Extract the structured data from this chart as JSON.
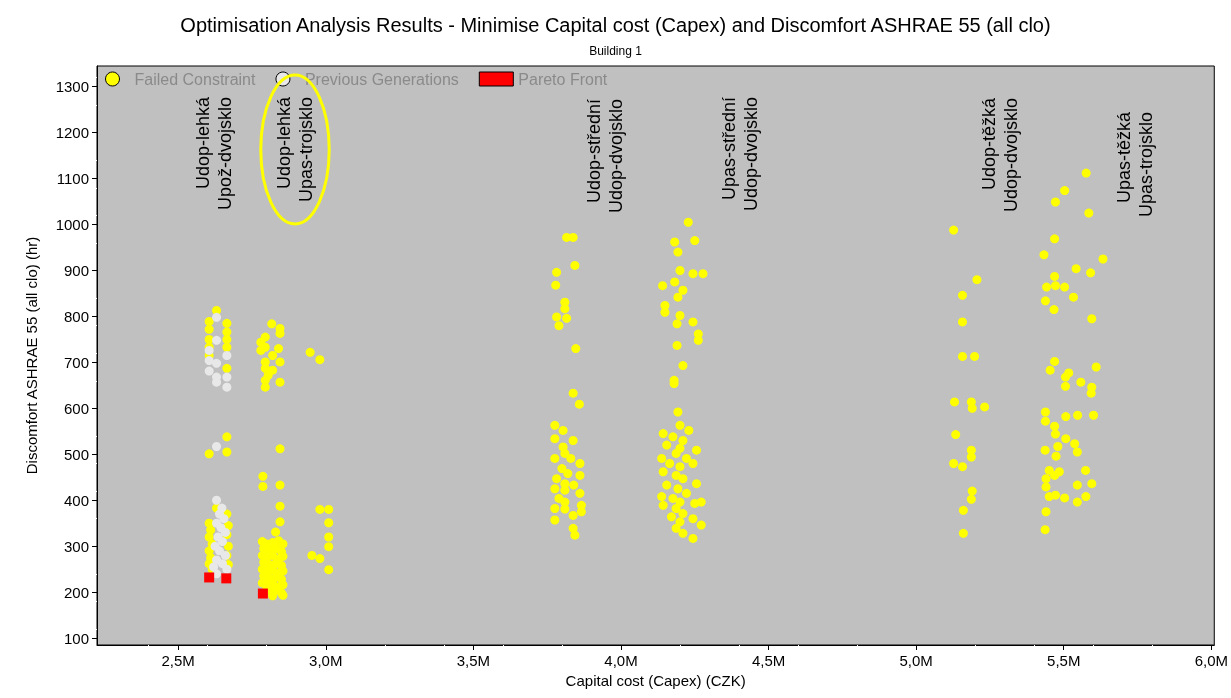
{
  "chart_data": {
    "type": "scatter",
    "title": "Optimisation Analysis Results - Minimise Capital cost (Capex) and Discomfort ASHRAE 55 (all clo)",
    "subtitle": "Building 1",
    "xlabel": "Capital cost (Capex) (CZK)",
    "ylabel": "Discomfort ASHRAE 55 (all clo) (hr)",
    "xlim": [
      2.225,
      6.01
    ],
    "xticks": [
      {
        "value": 2.5,
        "label": "2,5M"
      },
      {
        "value": 3.0,
        "label": "3,0M"
      },
      {
        "value": 3.5,
        "label": "3,5M"
      },
      {
        "value": 4.0,
        "label": "4,0M"
      },
      {
        "value": 4.5,
        "label": "4,5M"
      },
      {
        "value": 5.0,
        "label": "5,0M"
      },
      {
        "value": 5.5,
        "label": "5,5M"
      },
      {
        "value": 6.0,
        "label": "6,0M"
      }
    ],
    "ylim": [
      85,
      1345
    ],
    "yticks": [
      100,
      200,
      300,
      400,
      500,
      600,
      700,
      800,
      900,
      1000,
      1100,
      1200,
      1300
    ],
    "grid": false,
    "legend": "top left",
    "series": [
      {
        "name": "Failed Constraint",
        "color": "#ffff00",
        "marker": "circle",
        "x": [
          2.63,
          2.605,
          2.665,
          2.605,
          2.665,
          2.605,
          2.665,
          2.665,
          2.605,
          2.665,
          2.605,
          2.665,
          2.605,
          2.665,
          2.605,
          2.61,
          2.605,
          2.615,
          2.605,
          2.61,
          2.605,
          2.615,
          2.665,
          2.67,
          2.665,
          2.67,
          2.665,
          2.67,
          2.66,
          2.63,
          2.817,
          2.845,
          2.845,
          2.795,
          2.78,
          2.795,
          2.78,
          2.84,
          2.82,
          2.795,
          2.845,
          2.795,
          2.82,
          2.805,
          2.795,
          2.845,
          2.795,
          2.947,
          2.98,
          2.845,
          2.787,
          2.787,
          2.845,
          2.845,
          2.845,
          2.83,
          2.785,
          2.8,
          2.82,
          2.84,
          2.855,
          2.79,
          2.81,
          2.83,
          2.85,
          2.785,
          2.8,
          2.82,
          2.84,
          2.855,
          2.79,
          2.81,
          2.83,
          2.85,
          2.785,
          2.8,
          2.82,
          2.84,
          2.855,
          2.79,
          2.81,
          2.83,
          2.85,
          2.785,
          2.8,
          2.82,
          2.84,
          2.855,
          2.8,
          2.82,
          2.835,
          2.85,
          2.82,
          2.855,
          2.98,
          3.01,
          3.01,
          3.01,
          3.01,
          2.953,
          2.98,
          3.01,
          3.816,
          3.838,
          3.844,
          3.782,
          3.779,
          3.81,
          3.81,
          3.782,
          3.816,
          3.79,
          3.847,
          3.838,
          3.859,
          3.776,
          3.804,
          3.776,
          3.838,
          3.804,
          3.81,
          3.776,
          3.83,
          3.861,
          3.8,
          3.82,
          3.861,
          3.782,
          3.81,
          3.84,
          3.776,
          3.81,
          3.861,
          3.79,
          3.81,
          3.866,
          3.776,
          3.81,
          3.838,
          3.776,
          3.866,
          3.838,
          3.844,
          4.228,
          4.182,
          4.25,
          4.193,
          4.2,
          4.244,
          4.278,
          4.141,
          4.182,
          4.21,
          4.193,
          4.149,
          4.149,
          4.2,
          4.19,
          4.244,
          4.262,
          4.262,
          4.19,
          4.21,
          4.18,
          4.18,
          4.193,
          4.2,
          4.23,
          4.143,
          4.176,
          4.21,
          4.155,
          4.2,
          4.256,
          4.187,
          4.138,
          4.222,
          4.165,
          4.2,
          4.244,
          4.143,
          4.187,
          4.21,
          4.256,
          4.155,
          4.193,
          4.222,
          4.138,
          4.176,
          4.2,
          4.25,
          4.143,
          4.272,
          4.187,
          4.21,
          4.171,
          4.244,
          4.2,
          4.272,
          4.187,
          4.21,
          4.244,
          5.127,
          5.206,
          5.157,
          5.157,
          5.157,
          5.198,
          5.13,
          5.187,
          5.19,
          5.232,
          5.134,
          5.187,
          5.187,
          5.127,
          5.157,
          5.19,
          5.187,
          5.16,
          5.16,
          5.576,
          5.503,
          5.472,
          5.585,
          5.469,
          5.433,
          5.633,
          5.542,
          5.591,
          5.469,
          5.442,
          5.472,
          5.503,
          5.533,
          5.438,
          5.467,
          5.595,
          5.469,
          5.454,
          5.61,
          5.517,
          5.506,
          5.558,
          5.506,
          5.595,
          5.593,
          5.438,
          5.438,
          5.507,
          5.547,
          5.601,
          5.469,
          5.472,
          5.507,
          5.537,
          5.48,
          5.546,
          5.437,
          5.474,
          5.451,
          5.485,
          5.574,
          5.44,
          5.469,
          5.546,
          5.595,
          5.44,
          5.451,
          5.472,
          5.503,
          5.575,
          5.546,
          5.44,
          5.437
        ],
        "values": [
          813,
          789,
          785,
          772,
          766,
          750,
          750,
          733,
          733,
          687,
          715,
          538,
          501,
          505,
          350,
          335,
          320,
          305,
          290,
          275,
          262,
          250,
          370,
          345,
          325,
          300,
          280,
          260,
          null,
          383,
          784,
          774,
          763,
          755,
          744,
          733,
          726,
          730,
          715,
          701,
          701,
          687,
          683,
          672,
          661,
          657,
          646,
          722,
          706,
          512,
          452,
          430,
          433,
          387,
          353,
          331,
          310,
          305,
          308,
          312,
          305,
          295,
          290,
          295,
          288,
          280,
          275,
          280,
          272,
          278,
          265,
          260,
          262,
          258,
          250,
          245,
          248,
          242,
          246,
          235,
          230,
          232,
          228,
          220,
          215,
          218,
          212,
          216,
          205,
          200,
          205,
          198,
          192,
          193,
          380,
          380,
          351,
          320,
          299,
          280,
          273,
          249,
          972,
          972,
          911,
          896,
          868,
          831,
          817,
          799,
          796,
          780,
          730,
          633,
          609,
          563,
          552,
          534,
          530,
          516,
          502,
          491,
          491,
          480,
          469,
          458,
          454,
          447,
          436,
          433,
          425,
          422,
          415,
          404,
          396,
          389,
          382,
          381,
          367,
          357,
          375,
          339,
          324,
          1005,
          962,
          965,
          940,
          900,
          893,
          893,
          867,
          875,
          857,
          842,
          824,
          809,
          802,
          784,
          788,
          762,
          748,
          737,
          693,
          661,
          654,
          592,
          563,
          552,
          545,
          538,
          530,
          520,
          513,
          509,
          502,
          491,
          491,
          480,
          473,
          480,
          462,
          454,
          447,
          436,
          433,
          425,
          415,
          408,
          404,
          396,
          393,
          389,
          396,
          382,
          371,
          364,
          360,
          353,
          346,
          339,
          328,
          317,
          988,
          880,
          846,
          788,
          713,
          713,
          614,
          614,
          600,
          603,
          543,
          509,
          494,
          480,
          473,
          420,
          402,
          378,
          328,
          1112,
          1074,
          1049,
          1025,
          969,
          934,
          925,
          904,
          895,
          887,
          864,
          867,
          864,
          842,
          834,
          815,
          795,
          702,
          683,
          690,
          677,
          668,
          657,
          648,
          646,
          633,
          592,
          572,
          582,
          585,
          585,
          561,
          544,
          534,
          523,
          517,
          505,
          509,
          496,
          465,
          462,
          465,
          447,
          454,
          433,
          436,
          429,
          408,
          411,
          405,
          408,
          396,
          375,
          336
        ]
      },
      {
        "name": "Previous Generations",
        "color": "#e8e8e8",
        "marker": "circle",
        "x": [
          2.63,
          2.63,
          2.605,
          2.665,
          2.605,
          2.63,
          2.605,
          2.63,
          2.665,
          2.63,
          2.665,
          2.63,
          2.63,
          2.648,
          2.64,
          2.655,
          2.63,
          2.645,
          2.66,
          2.635,
          2.65,
          2.625,
          2.64,
          2.66,
          2.63,
          2.65,
          2.62,
          2.64,
          2.665,
          2.63
        ],
        "values": [
          798,
          748,
          726,
          715,
          704,
          698,
          681,
          668,
          668,
          657,
          646,
          517,
          400,
          383,
          370,
          360,
          350,
          340,
          330,
          320,
          310,
          300,
          290,
          280,
          270,
          262,
          255,
          null,
          250,
          240
        ]
      },
      {
        "name": "Pareto Front",
        "color": "#ff0000",
        "marker": "square",
        "x": [
          2.605,
          2.663,
          2.787
        ],
        "values": [
          232,
          230,
          197
        ]
      }
    ],
    "annotations": [
      "Udop-lehká\nUpož-dvojsklo",
      "Udop-lehká\nUpas-trojsklo",
      "Udop-střední\nUdop-dvojsklo",
      "Upas-střední\nUdop-dvojsklo",
      "Udop-těžká\nUdop-dvojsklo",
      "Upas-těžká\nUpas-trojsklo"
    ]
  }
}
